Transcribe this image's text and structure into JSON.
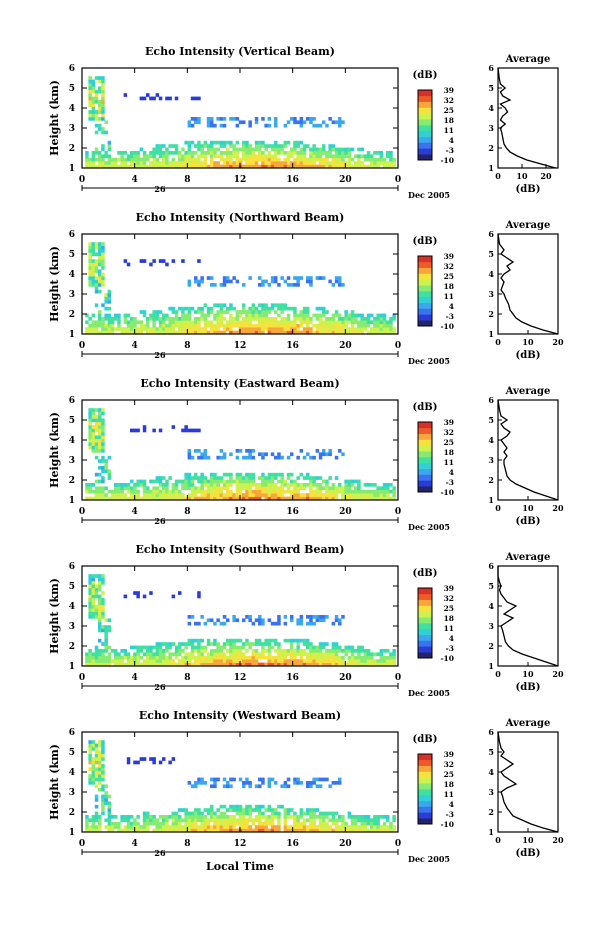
{
  "colors": {
    "colorbar_stops": [
      "#23246b",
      "#2b3bd6",
      "#3b72f0",
      "#3aa7ef",
      "#2fd0d6",
      "#41e0a2",
      "#86eb70",
      "#cdf24e",
      "#f6e23d",
      "#f7a63a",
      "#ee5b2a",
      "#d8312a"
    ]
  },
  "common": {
    "ylabel": "Height (km)",
    "yticks": [
      "1",
      "2",
      "3",
      "4",
      "5",
      "6"
    ],
    "xticks": [
      "0",
      "4",
      "8",
      "12",
      "16",
      "20",
      "0"
    ],
    "date_tick": "26",
    "date_label": "Dec 2005",
    "cbar_unit": "(dB)",
    "cbar_ticks": [
      "-10",
      "-3",
      "4",
      "11",
      "18",
      "25",
      "32",
      "39"
    ],
    "avg_title": "Average",
    "avg_xlabel": "(dB)",
    "xlabel": "Local Time"
  },
  "chart_data": [
    {
      "type": "heatmap",
      "title": "Echo Intensity (Vertical Beam)",
      "ylim": [
        1,
        6
      ],
      "xlim_hours": [
        0,
        24
      ],
      "clim_db": [
        -10,
        39
      ],
      "cloud_base_km": 3.0,
      "lower_layer_top_km": 2.3,
      "upper_band_km": 3.3,
      "average_profile": {
        "xticks": [
          "0",
          "10",
          "20"
        ],
        "xlim": [
          0,
          25
        ],
        "height_km": [
          1.0,
          1.2,
          1.4,
          1.6,
          1.8,
          2.0,
          2.2,
          2.5,
          2.8,
          3.0,
          3.2,
          3.4,
          3.6,
          3.8,
          4.0,
          4.2,
          4.4,
          4.6,
          4.8,
          5.0,
          5.2,
          5.5,
          6.0
        ],
        "db": [
          24,
          18,
          12,
          8,
          5,
          3.5,
          2.5,
          2,
          1.5,
          1,
          3,
          1,
          2,
          4,
          3,
          1,
          5,
          2,
          1,
          3,
          1,
          0.5,
          0
        ]
      }
    },
    {
      "type": "heatmap",
      "title": "Echo Intensity (Northward Beam)",
      "ylim": [
        1,
        6
      ],
      "xlim_hours": [
        0,
        24
      ],
      "clim_db": [
        -10,
        39
      ],
      "cloud_base_km": 3.0,
      "lower_layer_top_km": 2.4,
      "upper_band_km": 3.6,
      "average_profile": {
        "xticks": [
          "0",
          "10",
          "20"
        ],
        "xlim": [
          0,
          20
        ],
        "height_km": [
          1.0,
          1.2,
          1.4,
          1.6,
          1.8,
          2.0,
          2.2,
          2.5,
          2.8,
          3.0,
          3.2,
          3.4,
          3.6,
          3.8,
          4.0,
          4.2,
          4.4,
          4.6,
          4.8,
          5.0,
          5.2,
          5.5,
          6.0
        ],
        "db": [
          20,
          15,
          11,
          8,
          6,
          5,
          4,
          3.5,
          2.5,
          2,
          1,
          1.5,
          2,
          1,
          2,
          4,
          3,
          5,
          3,
          1,
          2,
          0.5,
          0
        ]
      }
    },
    {
      "type": "heatmap",
      "title": "Echo Intensity (Eastward Beam)",
      "ylim": [
        1,
        6
      ],
      "xlim_hours": [
        0,
        24
      ],
      "clim_db": [
        -10,
        39
      ],
      "cloud_base_km": 3.0,
      "lower_layer_top_km": 2.3,
      "upper_band_km": 3.4,
      "average_profile": {
        "xticks": [
          "0",
          "10",
          "20"
        ],
        "xlim": [
          0,
          20
        ],
        "height_km": [
          1.0,
          1.2,
          1.4,
          1.6,
          1.8,
          2.0,
          2.2,
          2.5,
          2.8,
          3.0,
          3.2,
          3.4,
          3.6,
          3.8,
          4.0,
          4.2,
          4.4,
          4.6,
          4.8,
          5.0,
          5.2,
          5.5,
          6.0
        ],
        "db": [
          20,
          16,
          12,
          9,
          6,
          4,
          3,
          2.5,
          2,
          2,
          3,
          2,
          3,
          2,
          1,
          3,
          4,
          2,
          1,
          3,
          1,
          0.5,
          0
        ]
      }
    },
    {
      "type": "heatmap",
      "title": "Echo Intensity (Southward Beam)",
      "ylim": [
        1,
        6
      ],
      "xlim_hours": [
        0,
        24
      ],
      "clim_db": [
        -10,
        39
      ],
      "cloud_base_km": 3.0,
      "lower_layer_top_km": 2.3,
      "upper_band_km": 3.3,
      "average_profile": {
        "xticks": [
          "0",
          "10",
          "20"
        ],
        "xlim": [
          0,
          20
        ],
        "height_km": [
          1.0,
          1.2,
          1.4,
          1.6,
          1.8,
          2.0,
          2.2,
          2.5,
          2.8,
          3.0,
          3.2,
          3.4,
          3.6,
          3.8,
          4.0,
          4.2,
          4.4,
          4.6,
          4.8,
          5.0,
          5.2,
          5.5,
          6.0
        ],
        "db": [
          20,
          16,
          12,
          8,
          5,
          3.5,
          2.5,
          2,
          1.5,
          1,
          3,
          5,
          2,
          4,
          6,
          3,
          2,
          1,
          0.5,
          1,
          0.5,
          0,
          0
        ]
      }
    },
    {
      "type": "heatmap",
      "title": "Echo Intensity (Westward Beam)",
      "ylim": [
        1,
        6
      ],
      "xlim_hours": [
        0,
        24
      ],
      "clim_db": [
        -10,
        39
      ],
      "cloud_base_km": 3.0,
      "lower_layer_top_km": 2.2,
      "upper_band_km": 3.5,
      "average_profile": {
        "xticks": [
          "0",
          "10",
          "20"
        ],
        "xlim": [
          0,
          20
        ],
        "height_km": [
          1.0,
          1.2,
          1.4,
          1.6,
          1.8,
          2.0,
          2.2,
          2.5,
          2.8,
          3.0,
          3.2,
          3.4,
          3.6,
          3.8,
          4.0,
          4.2,
          4.4,
          4.6,
          4.8,
          5.0,
          5.2,
          5.5,
          6.0
        ],
        "db": [
          20,
          15,
          11,
          8,
          5,
          4,
          3,
          2,
          1.5,
          1,
          3,
          6,
          4,
          2,
          1,
          3,
          5,
          3,
          1,
          2,
          1,
          0.5,
          0
        ]
      }
    }
  ]
}
